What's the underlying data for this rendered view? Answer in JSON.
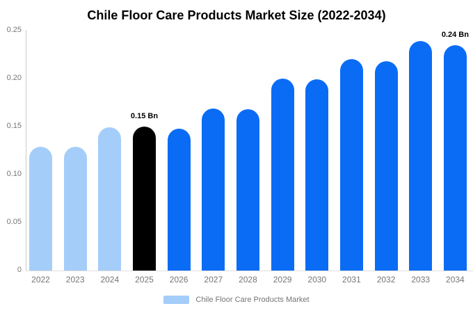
{
  "chart_data": {
    "type": "bar",
    "title": "Chile Floor Care Products Market Size (2022-2034)",
    "xlabel": "",
    "ylabel": "",
    "unit": "Bn",
    "categories": [
      "2022",
      "2023",
      "2024",
      "2025",
      "2026",
      "2027",
      "2028",
      "2029",
      "2030",
      "2031",
      "2032",
      "2033",
      "2034"
    ],
    "values": [
      0.129,
      0.129,
      0.149,
      0.15,
      0.148,
      0.169,
      0.168,
      0.2,
      0.199,
      0.22,
      0.218,
      0.239,
      0.238
    ],
    "bar_colors": [
      "#A5CDF9",
      "#A5CDF9",
      "#A5CDF9",
      "#000000",
      "#0A6CF4",
      "#0A6CF4",
      "#0A6CF4",
      "#0A6CF4",
      "#0A6CF4",
      "#0A6CF4",
      "#0A6CF4",
      "#0A6CF4",
      "#0A6CF4"
    ],
    "annotations": [
      {
        "year": "2025",
        "label": "0.15 Bn"
      },
      {
        "year": "2034",
        "label": "0.24 Bn"
      }
    ],
    "ylim": [
      0,
      0.25
    ],
    "yticks": [
      {
        "v": 0,
        "label": "0"
      },
      {
        "v": 0.05,
        "label": "0.05"
      },
      {
        "v": 0.1,
        "label": "0.10"
      },
      {
        "v": 0.15,
        "label": "0.15"
      },
      {
        "v": 0.2,
        "label": "0.20"
      },
      {
        "v": 0.25,
        "label": "0.25"
      }
    ],
    "grid": false,
    "legend_position": "bottom"
  },
  "legend": {
    "label": "Chile Floor Care Products Market",
    "swatch_color": "#A5CDF9"
  },
  "colors": {
    "history_bar": "#A5CDF9",
    "base_year_bar": "#000000",
    "forecast_bar": "#0A6CF4",
    "axis_line": "#cccccc",
    "baseline": "#e0e0e0",
    "tick_text": "#757575",
    "title_text": "#000000"
  }
}
